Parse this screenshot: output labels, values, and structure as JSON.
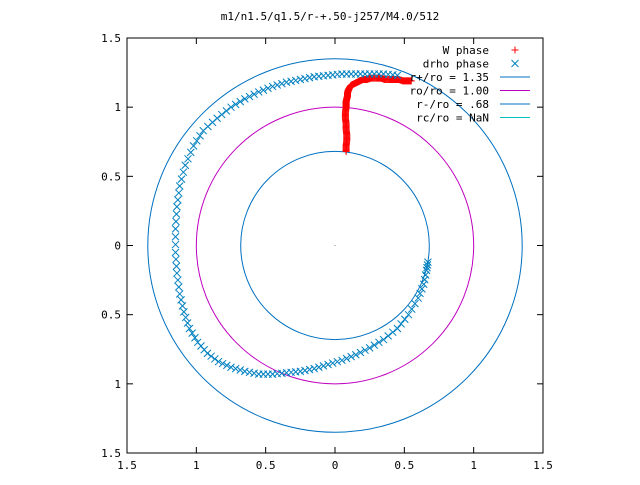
{
  "chart_data": {
    "type": "scatter",
    "title": "m1/n1.5/q1.5/r-+.50-j257/M4.0/512",
    "xlim": [
      -1.5,
      1.5
    ],
    "ylim": [
      -1.5,
      1.5
    ],
    "xticks": [
      -1.5,
      -1,
      -0.5,
      0,
      0.5,
      1,
      1.5
    ],
    "yticks": [
      -1.5,
      -1,
      -0.5,
      0,
      0.5,
      1,
      1.5
    ],
    "xtick_labels": [
      "1.5",
      "1",
      "0.5",
      "0",
      "0.5",
      "1",
      "1.5"
    ],
    "ytick_labels": [
      "1.5",
      "1",
      "0.5",
      "0",
      "0.5",
      "1",
      "1.5"
    ],
    "grid": false,
    "legend_placement": "top-right",
    "series": [
      {
        "name": "W phase",
        "marker": "plus",
        "color": "#ff0000",
        "x": [
          0.08,
          0.08,
          0.085,
          0.085,
          0.08,
          0.08,
          0.075,
          0.075,
          0.08,
          0.08,
          0.08,
          0.085,
          0.09,
          0.09,
          0.095,
          0.1,
          0.11,
          0.12,
          0.14,
          0.16,
          0.18,
          0.2,
          0.23,
          0.26,
          0.3,
          0.33,
          0.36,
          0.4,
          0.43,
          0.46,
          0.49,
          0.52,
          0.55
        ],
        "y": [
          0.68,
          0.72,
          0.76,
          0.8,
          0.84,
          0.88,
          0.92,
          0.96,
          1.0,
          1.02,
          1.04,
          1.06,
          1.08,
          1.1,
          1.12,
          1.13,
          1.15,
          1.16,
          1.17,
          1.18,
          1.19,
          1.2,
          1.2,
          1.21,
          1.21,
          1.21,
          1.2,
          1.2,
          1.2,
          1.2,
          1.19,
          1.19,
          1.19
        ]
      },
      {
        "name": "drho phase",
        "marker": "x",
        "color": "#0080c0",
        "x": [
          0.45,
          0.35,
          0.25,
          0.15,
          0.05,
          -0.05,
          -0.15,
          -0.25,
          -0.35,
          -0.45,
          -0.55,
          -0.65,
          -0.75,
          -0.85,
          -0.95,
          -1.02,
          -1.08,
          -1.12,
          -1.14,
          -1.15,
          -1.15,
          -1.14,
          -1.12,
          -1.09,
          -1.05,
          -0.99,
          -0.92,
          -0.84,
          -0.75,
          -0.65,
          -0.55,
          -0.45,
          -0.35,
          -0.25,
          -0.15,
          -0.05,
          0.05,
          0.15,
          0.25,
          0.35,
          0.45,
          0.53,
          0.6,
          0.64,
          0.66,
          0.67
        ],
        "y": [
          1.23,
          1.24,
          1.24,
          1.24,
          1.24,
          1.23,
          1.22,
          1.2,
          1.18,
          1.15,
          1.11,
          1.06,
          1.0,
          0.92,
          0.83,
          0.72,
          0.58,
          0.43,
          0.28,
          0.12,
          -0.05,
          -0.2,
          -0.35,
          -0.48,
          -0.6,
          -0.7,
          -0.78,
          -0.84,
          -0.88,
          -0.91,
          -0.93,
          -0.93,
          -0.92,
          -0.91,
          -0.89,
          -0.86,
          -0.83,
          -0.79,
          -0.74,
          -0.68,
          -0.6,
          -0.5,
          -0.38,
          -0.28,
          -0.18,
          -0.12
        ]
      },
      {
        "name": "r+/ro = 1.35",
        "type": "circle",
        "radius": 1.35,
        "color": "#0070c0"
      },
      {
        "name": "ro/ro = 1.00",
        "type": "circle",
        "radius": 1.0,
        "color": "#c000c0"
      },
      {
        "name": "r-/ro = .68",
        "type": "circle",
        "radius": 0.68,
        "color": "#0070c0"
      },
      {
        "name": "rc/ro = NaN",
        "type": "circle",
        "radius": null,
        "color": "#00c0c0"
      }
    ]
  }
}
